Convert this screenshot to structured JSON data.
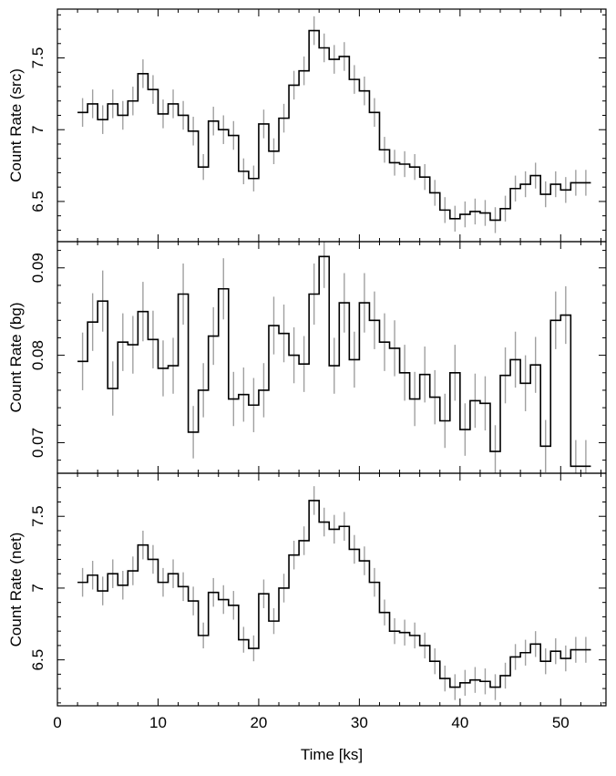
{
  "chart_data": [
    {
      "type": "line",
      "style": "step",
      "ylabel": "Count Rate (src)",
      "ylim": [
        6.22,
        7.84
      ],
      "yticks": [
        6.5,
        7,
        7.5
      ],
      "x": [
        2.5,
        3.5,
        4.5,
        5.5,
        6.5,
        7.5,
        8.5,
        9.5,
        10.5,
        11.5,
        12.5,
        13.5,
        14.5,
        15.5,
        16.5,
        17.5,
        18.5,
        19.5,
        20.5,
        21.5,
        22.5,
        23.5,
        24.5,
        25.5,
        26.5,
        27.5,
        28.5,
        29.5,
        30.5,
        31.5,
        32.5,
        33.5,
        34.5,
        35.5,
        36.5,
        37.5,
        38.5,
        39.5,
        40.5,
        41.5,
        42.5,
        43.5,
        44.5,
        45.5,
        46.5,
        47.5,
        48.5,
        49.5,
        50.5,
        51.5,
        52.5
      ],
      "values": [
        7.12,
        7.18,
        7.07,
        7.18,
        7.1,
        7.2,
        7.39,
        7.28,
        7.11,
        7.18,
        7.1,
        6.99,
        6.74,
        7.06,
        7.0,
        6.96,
        6.71,
        6.66,
        7.04,
        6.85,
        7.08,
        7.31,
        7.41,
        7.69,
        7.57,
        7.49,
        7.51,
        7.35,
        7.27,
        7.12,
        6.86,
        6.77,
        6.76,
        6.74,
        6.67,
        6.56,
        6.44,
        6.38,
        6.41,
        6.43,
        6.42,
        6.37,
        6.45,
        6.59,
        6.62,
        6.68,
        6.55,
        6.62,
        6.58,
        6.63,
        6.63
      ],
      "errors": [
        0.1,
        0.1,
        0.1,
        0.1,
        0.1,
        0.1,
        0.1,
        0.1,
        0.1,
        0.1,
        0.1,
        0.1,
        0.09,
        0.1,
        0.1,
        0.1,
        0.09,
        0.09,
        0.1,
        0.09,
        0.1,
        0.1,
        0.1,
        0.1,
        0.1,
        0.1,
        0.1,
        0.1,
        0.1,
        0.1,
        0.09,
        0.09,
        0.09,
        0.09,
        0.09,
        0.09,
        0.09,
        0.09,
        0.09,
        0.09,
        0.09,
        0.09,
        0.09,
        0.09,
        0.09,
        0.09,
        0.09,
        0.09,
        0.09,
        0.09,
        0.09
      ],
      "color": "#000000",
      "error_color": "#a0a0a0"
    },
    {
      "type": "line",
      "style": "step",
      "ylabel": "Count Rate (bg)",
      "ylim": [
        0.0665,
        0.093
      ],
      "yticks": [
        0.07,
        0.08,
        0.09
      ],
      "ytick_labels": [
        "0.07",
        "0.08",
        "0.09"
      ],
      "x": [
        2.5,
        3.5,
        4.5,
        5.5,
        6.5,
        7.5,
        8.5,
        9.5,
        10.5,
        11.5,
        12.5,
        13.5,
        14.5,
        15.5,
        16.5,
        17.5,
        18.5,
        19.5,
        20.5,
        21.5,
        22.5,
        23.5,
        24.5,
        25.5,
        26.5,
        27.5,
        28.5,
        29.5,
        30.5,
        31.5,
        32.5,
        33.5,
        34.5,
        35.5,
        36.5,
        37.5,
        38.5,
        39.5,
        40.5,
        41.5,
        42.5,
        43.5,
        44.5,
        45.5,
        46.5,
        47.5,
        48.5,
        49.5,
        50.5,
        51.5,
        52.5
      ],
      "values": [
        0.0793,
        0.0838,
        0.0862,
        0.0762,
        0.0815,
        0.0812,
        0.085,
        0.0818,
        0.0785,
        0.0788,
        0.087,
        0.0712,
        0.076,
        0.0822,
        0.0876,
        0.075,
        0.0755,
        0.0743,
        0.076,
        0.0834,
        0.0825,
        0.08,
        0.079,
        0.087,
        0.0913,
        0.0788,
        0.086,
        0.0795,
        0.086,
        0.084,
        0.0815,
        0.0808,
        0.078,
        0.075,
        0.0778,
        0.0752,
        0.0725,
        0.078,
        0.0715,
        0.0748,
        0.0745,
        0.069,
        0.0777,
        0.0795,
        0.0768,
        0.0789,
        0.0696,
        0.084,
        0.0846,
        0.0673,
        0.0673
      ],
      "errors": [
        0.0033,
        0.0033,
        0.0035,
        0.0031,
        0.0033,
        0.0033,
        0.0034,
        0.0033,
        0.0032,
        0.0032,
        0.0035,
        0.003,
        0.0031,
        0.0033,
        0.0035,
        0.0031,
        0.0031,
        0.0031,
        0.0031,
        0.0033,
        0.0033,
        0.0032,
        0.0032,
        0.0035,
        0.0036,
        0.0032,
        0.0034,
        0.0032,
        0.0034,
        0.0033,
        0.0033,
        0.0032,
        0.0032,
        0.0031,
        0.0032,
        0.0031,
        0.0031,
        0.0032,
        0.003,
        0.0031,
        0.0031,
        0.003,
        0.0032,
        0.0032,
        0.0032,
        0.0032,
        0.003,
        0.0033,
        0.0033,
        0.003,
        0.003
      ],
      "color": "#000000",
      "error_color": "#a0a0a0"
    },
    {
      "type": "line",
      "style": "step",
      "ylabel": "Count Rate (net)",
      "xlabel": "Time [ks]",
      "xlim": [
        0,
        54.5
      ],
      "xticks": [
        0,
        10,
        20,
        30,
        40,
        50
      ],
      "ylim": [
        6.18,
        7.8
      ],
      "yticks": [
        6.5,
        7,
        7.5
      ],
      "x": [
        2.5,
        3.5,
        4.5,
        5.5,
        6.5,
        7.5,
        8.5,
        9.5,
        10.5,
        11.5,
        12.5,
        13.5,
        14.5,
        15.5,
        16.5,
        17.5,
        18.5,
        19.5,
        20.5,
        21.5,
        22.5,
        23.5,
        24.5,
        25.5,
        26.5,
        27.5,
        28.5,
        29.5,
        30.5,
        31.5,
        32.5,
        33.5,
        34.5,
        35.5,
        36.5,
        37.5,
        38.5,
        39.5,
        40.5,
        41.5,
        42.5,
        43.5,
        44.5,
        45.5,
        46.5,
        47.5,
        48.5,
        49.5,
        50.5,
        51.5,
        52.5
      ],
      "values": [
        7.04,
        7.09,
        6.98,
        7.1,
        7.02,
        7.12,
        7.3,
        7.2,
        7.04,
        7.1,
        7.01,
        6.91,
        6.67,
        6.97,
        6.92,
        6.88,
        6.64,
        6.58,
        6.96,
        6.77,
        7.0,
        7.23,
        7.33,
        7.61,
        7.46,
        7.41,
        7.43,
        7.27,
        7.19,
        7.04,
        6.83,
        6.7,
        6.69,
        6.67,
        6.6,
        6.49,
        6.37,
        6.31,
        6.34,
        6.36,
        6.35,
        6.31,
        6.39,
        6.52,
        6.55,
        6.61,
        6.49,
        6.56,
        6.51,
        6.57,
        6.57
      ],
      "errors": [
        0.1,
        0.1,
        0.1,
        0.1,
        0.1,
        0.1,
        0.1,
        0.1,
        0.1,
        0.1,
        0.1,
        0.1,
        0.09,
        0.1,
        0.1,
        0.1,
        0.09,
        0.09,
        0.1,
        0.09,
        0.1,
        0.1,
        0.1,
        0.1,
        0.1,
        0.1,
        0.1,
        0.1,
        0.1,
        0.1,
        0.09,
        0.09,
        0.09,
        0.09,
        0.09,
        0.09,
        0.09,
        0.09,
        0.09,
        0.09,
        0.09,
        0.09,
        0.09,
        0.09,
        0.09,
        0.09,
        0.09,
        0.09,
        0.09,
        0.09,
        0.09
      ],
      "color": "#000000",
      "error_color": "#a0a0a0"
    }
  ]
}
